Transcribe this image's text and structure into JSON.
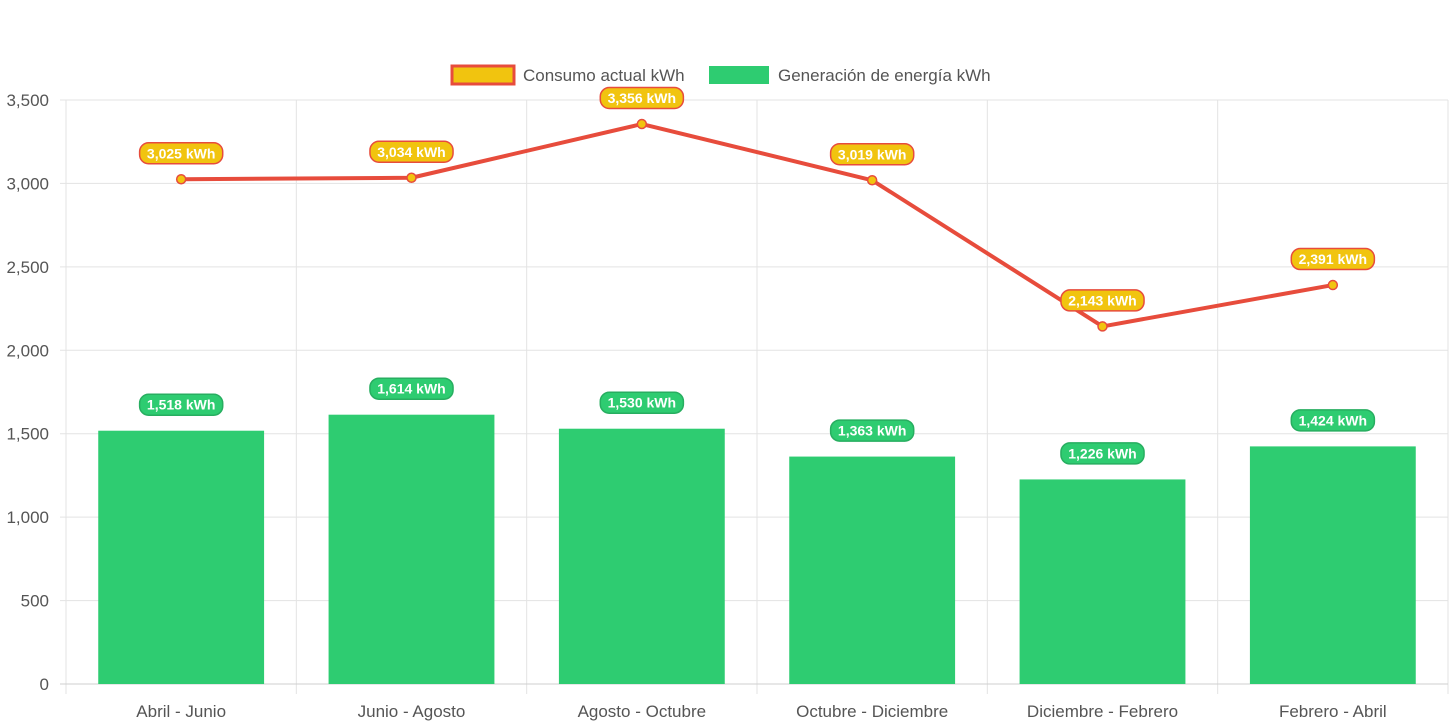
{
  "chart_data": {
    "type": "bar",
    "categories": [
      "Abril - Junio",
      "Junio - Agosto",
      "Agosto - Octubre",
      "Octubre - Diciembre",
      "Diciembre - Febrero",
      "Febrero - Abril"
    ],
    "series": [
      {
        "name": "Consumo actual kWh",
        "type": "line",
        "values": [
          3025,
          3034,
          3356,
          3019,
          2143,
          2391
        ],
        "labels": [
          "3,025 kWh",
          "3,034 kWh",
          "3,356 kWh",
          "3,019 kWh",
          "2,143 kWh",
          "2,391 kWh"
        ],
        "color": "#e74c3c",
        "point_color": "#f1c40f",
        "label_bg": "#f1c40f"
      },
      {
        "name": "Generación de energía kWh",
        "type": "bar",
        "values": [
          1518,
          1614,
          1530,
          1363,
          1226,
          1424
        ],
        "labels": [
          "1,518 kWh",
          "1,614 kWh",
          "1,530 kWh",
          "1,363 kWh",
          "1,226 kWh",
          "1,424 kWh"
        ],
        "color": "#2ecc71",
        "label_border": "#27ae60"
      }
    ],
    "ylim": [
      0,
      3500
    ],
    "yticks": [
      0,
      500,
      1000,
      1500,
      2000,
      2500,
      3000,
      3500
    ],
    "ytick_labels": [
      "0",
      "500",
      "1,000",
      "1,500",
      "2,000",
      "2,500",
      "3,000",
      "3,500"
    ],
    "grid": true,
    "legend_position": "top",
    "title": "",
    "xlabel": "",
    "ylabel": ""
  }
}
